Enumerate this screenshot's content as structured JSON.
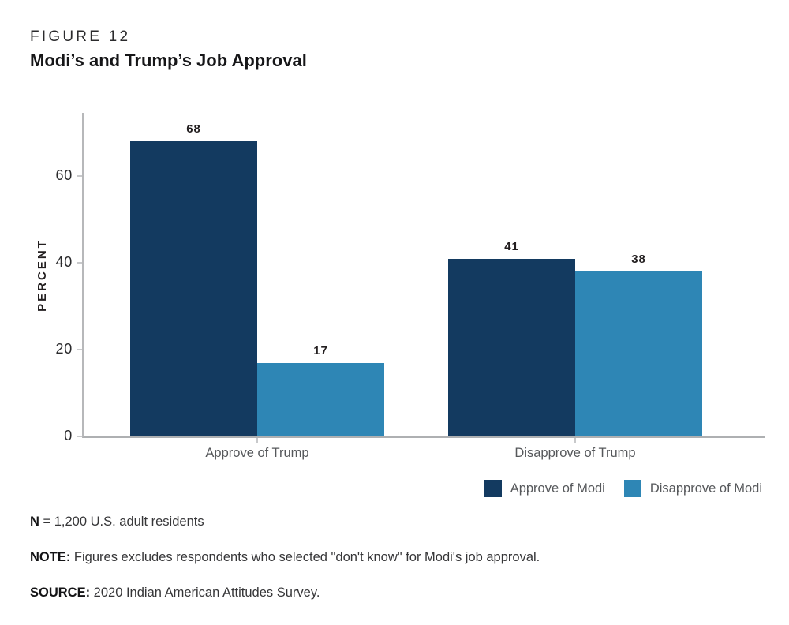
{
  "figure": {
    "label": "FIGURE 12",
    "title": "Modi’s and Trump’s Job Approval"
  },
  "chart_data": {
    "type": "bar",
    "categories": [
      "Approve of Trump",
      "Disapprove of Trump"
    ],
    "series": [
      {
        "name": "Approve of Modi",
        "color": "#133A60",
        "values": [
          68,
          41
        ]
      },
      {
        "name": "Disapprove of Modi",
        "color": "#2E86B5",
        "values": [
          17,
          38
        ]
      }
    ],
    "title": "Modi’s and Trump’s Job Approval",
    "xlabel": "",
    "ylabel": "PERCENT",
    "yticks": [
      0,
      20,
      40,
      60
    ],
    "ylim": [
      0,
      74.6
    ],
    "grid": false,
    "legend_position": "bottom-right",
    "value_labels": true
  },
  "notes": {
    "n_label": "N",
    "n_text": " = 1,200 U.S. adult residents",
    "note_label": "NOTE:",
    "note_text": " Figures excludes respondents who selected \"don't know\" for Modi's job approval.",
    "source_label": "SOURCE:",
    "source_text": " 2020 Indian American Attitudes Survey."
  },
  "colors": {
    "bar_dark": "#133A60",
    "bar_light": "#2E86B5",
    "axis_line": "#AEB0B2",
    "tick_dash": "#C8C9CB",
    "text_dark": "#231F20",
    "text_gray": "#56585B"
  }
}
